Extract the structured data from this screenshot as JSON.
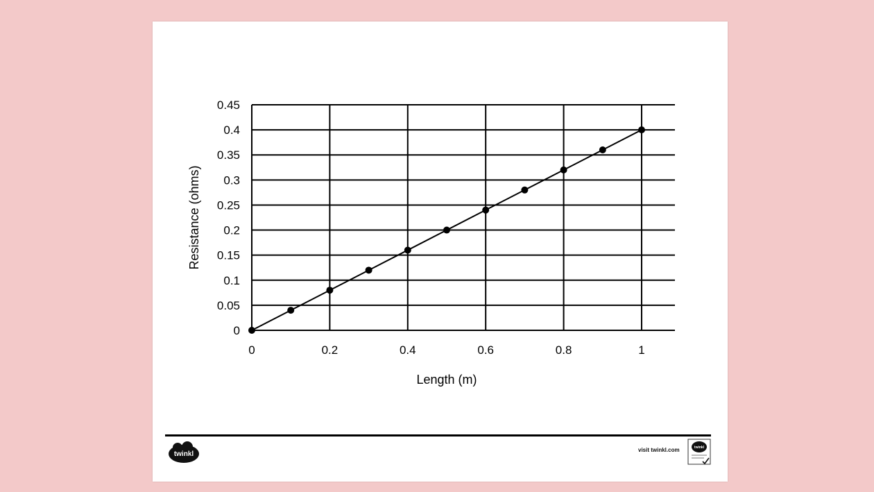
{
  "chart_data": {
    "type": "line",
    "title": "",
    "xlabel": "Length (m)",
    "ylabel": "Resistance (ohms)",
    "x_ticks": [
      "0",
      "0.2",
      "0.4",
      "0.6",
      "0.8",
      "1"
    ],
    "y_ticks": [
      "0",
      "0.05",
      "0.1",
      "0.15",
      "0.2",
      "0.25",
      "0.3",
      "0.35",
      "0.4",
      "0.45"
    ],
    "xlim": [
      0,
      1
    ],
    "ylim": [
      0,
      0.45
    ],
    "grid": true,
    "markers": true,
    "series": [
      {
        "x": [
          0,
          0.1,
          0.2,
          0.3,
          0.4,
          0.5,
          0.6,
          0.7,
          0.8,
          0.9,
          1.0
        ],
        "y": [
          0,
          0.04,
          0.08,
          0.12,
          0.16,
          0.2,
          0.24,
          0.28,
          0.32,
          0.36,
          0.4
        ]
      }
    ]
  },
  "footer": {
    "logo_text": "twinkl",
    "visit_text": "visit twinkl.com",
    "badge_text": "twinkl"
  },
  "colors": {
    "background": "#f3c9c9",
    "sheet": "#ffffff",
    "ink": "#000000",
    "logo": "#111111"
  }
}
